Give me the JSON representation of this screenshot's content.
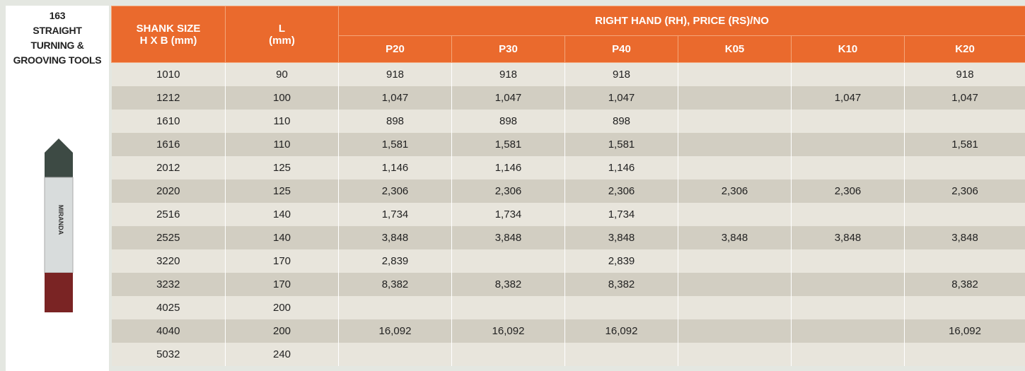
{
  "side_panel": {
    "title_lines": [
      "163",
      "STRAIGHT",
      "TURNING &",
      "GROOVING TOOLS"
    ],
    "tool_label": "MIRANDA"
  },
  "table": {
    "headers": {
      "shank": [
        "SHANK SIZE",
        "H X B (mm)"
      ],
      "length": [
        "L",
        "(mm)"
      ],
      "group": "RIGHT HAND (RH), PRICE (RS)/NO",
      "grades": [
        "P20",
        "P30",
        "P40",
        "K05",
        "K10",
        "K20"
      ]
    },
    "rows": [
      [
        "1010",
        "90",
        "918",
        "918",
        "918",
        null,
        null,
        "918"
      ],
      [
        "1212",
        "100",
        "1,047",
        "1,047",
        "1,047",
        null,
        "1,047",
        "1,047"
      ],
      [
        "1610",
        "110",
        "898",
        "898",
        "898",
        null,
        null,
        null
      ],
      [
        "1616",
        "110",
        "1,581",
        "1,581",
        "1,581",
        null,
        null,
        "1,581"
      ],
      [
        "2012",
        "125",
        "1,146",
        "1,146",
        "1,146",
        null,
        null,
        null
      ],
      [
        "2020",
        "125",
        "2,306",
        "2,306",
        "2,306",
        "2,306",
        "2,306",
        "2,306"
      ],
      [
        "2516",
        "140",
        "1,734",
        "1,734",
        "1,734",
        null,
        null,
        null
      ],
      [
        "2525",
        "140",
        "3,848",
        "3,848",
        "3,848",
        "3,848",
        "3,848",
        "3,848"
      ],
      [
        "3220",
        "170",
        "2,839",
        null,
        "2,839",
        null,
        null,
        null
      ],
      [
        "3232",
        "170",
        "8,382",
        "8,382",
        "8,382",
        null,
        null,
        "8,382"
      ],
      [
        "4025",
        "200",
        null,
        null,
        null,
        null,
        null,
        null
      ],
      [
        "4040",
        "200",
        "16,092",
        "16,092",
        "16,092",
        null,
        null,
        "16,092"
      ],
      [
        "5032",
        "240",
        null,
        null,
        null,
        null,
        null,
        null
      ]
    ]
  }
}
